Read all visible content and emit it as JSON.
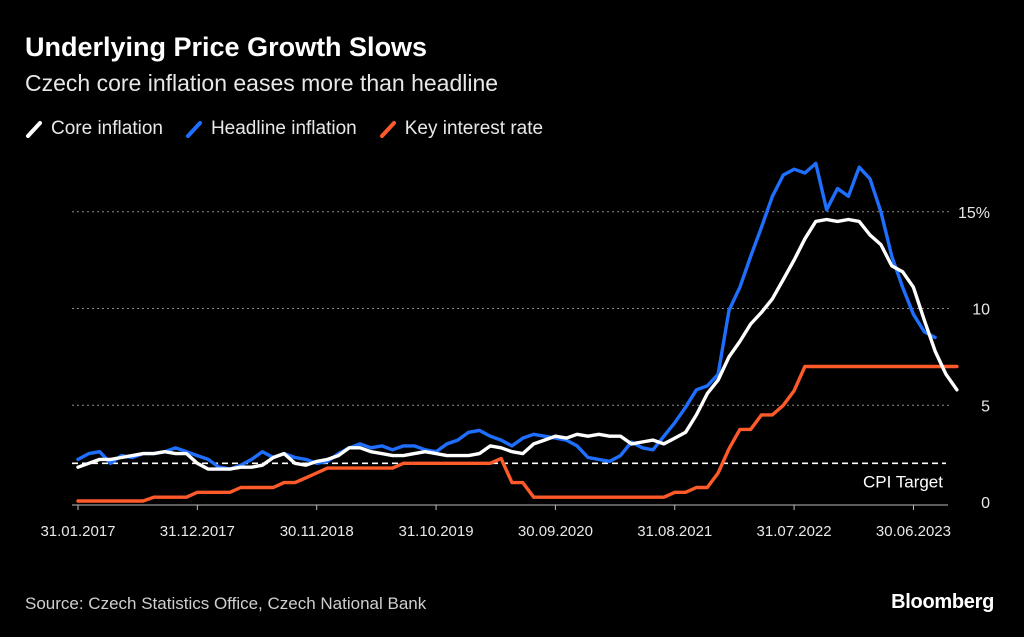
{
  "header": {
    "title": "Underlying Price Growth Slows",
    "subtitle": "Czech core inflation eases more than headline"
  },
  "legend": [
    {
      "label": "Core inflation",
      "color": "#ffffff"
    },
    {
      "label": "Headline inflation",
      "color": "#1f6fff"
    },
    {
      "label": "Key interest rate",
      "color": "#ff5a2a"
    }
  ],
  "footer": {
    "source": "Source: Czech Statistics Office, Czech National Bank",
    "brand": "Bloomberg"
  },
  "chart_data": {
    "type": "line",
    "title": "Underlying Price Growth Slows",
    "subtitle": "Czech core inflation eases more than headline",
    "x_start": "2017-01",
    "x_ticks": [
      "31.01.2017",
      "31.12.2017",
      "30.11.2018",
      "31.10.2019",
      "30.09.2020",
      "31.08.2021",
      "31.07.2022",
      "30.06.2023"
    ],
    "x_tick_index": [
      0,
      11,
      22,
      33,
      44,
      55,
      66,
      77
    ],
    "y_ticks": [
      0,
      5,
      10,
      15
    ],
    "y_tick_labels": [
      "0",
      "5",
      "10",
      "15%"
    ],
    "ylim": [
      -1,
      17
    ],
    "annotations": [
      {
        "label": "CPI Target",
        "value": 2
      }
    ],
    "series": [
      {
        "name": "Core inflation",
        "color": "#ffffff",
        "values": [
          1.8,
          2.0,
          2.2,
          2.2,
          2.3,
          2.4,
          2.5,
          2.5,
          2.6,
          2.5,
          2.5,
          2.0,
          1.7,
          1.7,
          1.7,
          1.8,
          1.8,
          1.9,
          2.3,
          2.5,
          2.0,
          1.9,
          2.1,
          2.2,
          2.4,
          2.8,
          2.8,
          2.6,
          2.5,
          2.4,
          2.4,
          2.5,
          2.6,
          2.5,
          2.4,
          2.4,
          2.4,
          2.5,
          2.9,
          2.8,
          2.6,
          2.5,
          3.0,
          3.2,
          3.4,
          3.3,
          3.5,
          3.4,
          3.5,
          3.4,
          3.4,
          3.0,
          3.1,
          3.2,
          3.0,
          3.3,
          3.6,
          4.5,
          5.6,
          6.3,
          7.5,
          8.3,
          9.2,
          9.8,
          10.5,
          11.5,
          12.5,
          13.6,
          14.5,
          14.6,
          14.5,
          14.6,
          14.5,
          13.8,
          13.3,
          12.2,
          11.9,
          11.1,
          9.4,
          7.8,
          6.6,
          5.8
        ]
      },
      {
        "name": "Headline inflation",
        "color": "#1f6fff",
        "values": [
          2.2,
          2.5,
          2.6,
          2.0,
          2.4,
          2.3,
          2.5,
          2.5,
          2.6,
          2.8,
          2.6,
          2.4,
          2.2,
          1.8,
          1.7,
          1.9,
          2.2,
          2.6,
          2.3,
          2.5,
          2.3,
          2.2,
          2.0,
          2.1,
          2.5,
          2.8,
          3.0,
          2.8,
          2.9,
          2.7,
          2.9,
          2.9,
          2.7,
          2.6,
          3.0,
          3.2,
          3.6,
          3.7,
          3.4,
          3.2,
          2.9,
          3.3,
          3.5,
          3.4,
          3.3,
          3.2,
          2.9,
          2.3,
          2.2,
          2.1,
          2.4,
          3.1,
          2.8,
          2.7,
          3.4,
          4.1,
          4.9,
          5.8,
          6.0,
          6.6,
          9.9,
          11.1,
          12.7,
          14.2,
          15.8,
          16.9,
          17.2,
          17.0,
          17.5,
          15.1,
          16.2,
          15.8,
          17.3,
          16.7,
          15.0,
          12.7,
          11.1,
          9.7,
          8.8,
          8.5
        ]
      },
      {
        "name": "Key interest rate",
        "color": "#ff5a2a",
        "values": [
          0.05,
          0.05,
          0.05,
          0.05,
          0.05,
          0.05,
          0.05,
          0.25,
          0.25,
          0.25,
          0.25,
          0.5,
          0.5,
          0.5,
          0.5,
          0.75,
          0.75,
          0.75,
          0.75,
          1.0,
          1.0,
          1.25,
          1.5,
          1.75,
          1.75,
          1.75,
          1.75,
          1.75,
          1.75,
          1.75,
          2.0,
          2.0,
          2.0,
          2.0,
          2.0,
          2.0,
          2.0,
          2.0,
          2.0,
          2.25,
          1.0,
          1.0,
          0.25,
          0.25,
          0.25,
          0.25,
          0.25,
          0.25,
          0.25,
          0.25,
          0.25,
          0.25,
          0.25,
          0.25,
          0.25,
          0.5,
          0.5,
          0.75,
          0.75,
          1.5,
          2.75,
          3.75,
          3.75,
          4.5,
          4.5,
          5.0,
          5.75,
          7.0,
          7.0,
          7.0,
          7.0,
          7.0,
          7.0,
          7.0,
          7.0,
          7.0,
          7.0,
          7.0,
          7.0,
          7.0,
          7.0,
          7.0
        ]
      }
    ]
  }
}
